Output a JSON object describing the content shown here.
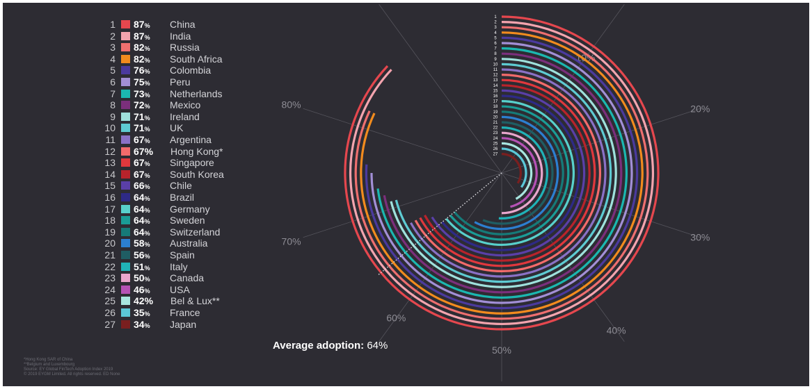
{
  "chart_data": {
    "type": "radial-bar",
    "average_label": "Average adoption:",
    "average_value": "64%",
    "average": 64,
    "scale_labels": [
      "10%",
      "20%",
      "30%",
      "40%",
      "50%",
      "60%",
      "70%",
      "80%"
    ],
    "series": [
      {
        "rank": "1",
        "value": 87,
        "pct": "87",
        "country": "China",
        "color": "#e5474e"
      },
      {
        "rank": "2",
        "value": 87,
        "pct": "87",
        "country": "India",
        "color": "#f3a4ae"
      },
      {
        "rank": "3",
        "value": 82,
        "pct": "82",
        "country": "Russia",
        "color": "#ee6f6f"
      },
      {
        "rank": "4",
        "value": 82,
        "pct": "82",
        "country": "South Africa",
        "color": "#f28b1e"
      },
      {
        "rank": "5",
        "value": 76,
        "pct": "76",
        "country": "Colombia",
        "color": "#4b3a9e"
      },
      {
        "rank": "6",
        "value": 75,
        "pct": "75",
        "country": "Peru",
        "color": "#a28fd6"
      },
      {
        "rank": "7",
        "value": 73,
        "pct": "73",
        "country": "Netherlands",
        "color": "#1bb7b0"
      },
      {
        "rank": "8",
        "value": 72,
        "pct": "72",
        "country": "Mexico",
        "color": "#7b2f7c"
      },
      {
        "rank": "9",
        "value": 71,
        "pct": "71",
        "country": "Ireland",
        "color": "#9fe1dc"
      },
      {
        "rank": "10",
        "value": 71,
        "pct": "71",
        "country": "UK",
        "color": "#5ecbd2"
      },
      {
        "rank": "11",
        "value": 67,
        "pct": "67",
        "country": "Argentina",
        "color": "#8a71c6"
      },
      {
        "rank": "12",
        "value": 67,
        "pct": "67%",
        "country": "Hong Kong*",
        "color": "#f36b6b"
      },
      {
        "rank": "13",
        "value": 67,
        "pct": "67",
        "country": "Singapore",
        "color": "#e0383d"
      },
      {
        "rank": "14",
        "value": 67,
        "pct": "67",
        "country": "South Korea",
        "color": "#b8232b"
      },
      {
        "rank": "15",
        "value": 66,
        "pct": "66",
        "country": "Chile",
        "color": "#5a3fa8"
      },
      {
        "rank": "16",
        "value": 64,
        "pct": "64",
        "country": "Brazil",
        "color": "#2e2a86"
      },
      {
        "rank": "17",
        "value": 64,
        "pct": "64",
        "country": "Germany",
        "color": "#58d0cc"
      },
      {
        "rank": "18",
        "value": 64,
        "pct": "64",
        "country": "Sweden",
        "color": "#1a9c96"
      },
      {
        "rank": "19",
        "value": 64,
        "pct": "64",
        "country": "Switzerland",
        "color": "#167a78"
      },
      {
        "rank": "20",
        "value": 58,
        "pct": "58",
        "country": "Australia",
        "color": "#2c7fd0"
      },
      {
        "rank": "21",
        "value": 56,
        "pct": "56",
        "country": "Spain",
        "color": "#1f5d63"
      },
      {
        "rank": "22",
        "value": 51,
        "pct": "51",
        "country": "Italy",
        "color": "#20b2b7"
      },
      {
        "rank": "23",
        "value": 50,
        "pct": "50",
        "country": "Canada",
        "color": "#e9a6cd"
      },
      {
        "rank": "24",
        "value": 46,
        "pct": "46",
        "country": "USA",
        "color": "#b552b5"
      },
      {
        "rank": "25",
        "value": 42,
        "pct": "42%",
        "country": "Bel & Lux**",
        "color": "#a8e6e0"
      },
      {
        "rank": "26",
        "value": 35,
        "pct": "35",
        "country": "France",
        "color": "#5bc8d8"
      },
      {
        "rank": "27",
        "value": 34,
        "pct": "34",
        "country": "Japan",
        "color": "#7a1f1f"
      }
    ]
  },
  "footnotes": [
    "*Hong Kong SAR of China",
    "**Belgium and Luxembourg",
    "Source: EY Global FinTech Adoption Index 2019",
    "© 2019 EYGM Limited. All rights reserved. ED None"
  ]
}
